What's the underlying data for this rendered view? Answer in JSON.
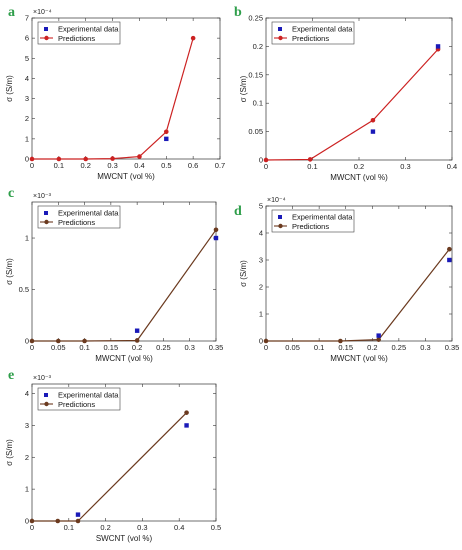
{
  "colors": {
    "experimental": "#1a1ab8",
    "prediction_red": "#cc2222",
    "prediction_brown": "#6b3a1f",
    "panel_letter": "#2e9e4a"
  },
  "chart_data": [
    {
      "panel": "a",
      "type": "scatter+line",
      "xlabel": "MWCNT (vol %)",
      "ylabel": "σ (S/m)",
      "ymultiplier": "×10⁻⁴",
      "xlim": [
        0,
        0.7
      ],
      "ylim": [
        0,
        7
      ],
      "xticks": [
        "0",
        "0.1",
        "0.2",
        "0.3",
        "0.4",
        "0.5",
        "0.6",
        "0.7"
      ],
      "yticks": [
        "0",
        "1",
        "2",
        "3",
        "4",
        "5",
        "6",
        "7"
      ],
      "legend": [
        "Experimental data",
        "Predictions"
      ],
      "line_color": "prediction_red",
      "series": [
        {
          "name": "Experimental data",
          "x": [
            0.5
          ],
          "y": [
            1.0
          ]
        },
        {
          "name": "Predictions",
          "x": [
            0,
            0.1,
            0.2,
            0.3,
            0.4,
            0.5,
            0.6
          ],
          "y": [
            0,
            0,
            0,
            0.02,
            0.12,
            1.35,
            6.0
          ]
        }
      ]
    },
    {
      "panel": "b",
      "type": "scatter+line",
      "xlabel": "MWCNT (vol %)",
      "ylabel": "σ (S/m)",
      "ymultiplier": "",
      "xlim": [
        0,
        0.4
      ],
      "ylim": [
        0,
        0.25
      ],
      "xticks": [
        "0",
        "0.1",
        "0.2",
        "0.3",
        "0.4"
      ],
      "yticks": [
        "0",
        "0.05",
        "0.1",
        "0.15",
        "0.2",
        "0.25"
      ],
      "legend": [
        "Experimental data",
        "Predictions"
      ],
      "line_color": "prediction_red",
      "series": [
        {
          "name": "Experimental data",
          "x": [
            0.23,
            0.37
          ],
          "y": [
            0.05,
            0.2
          ]
        },
        {
          "name": "Predictions",
          "x": [
            0,
            0.095,
            0.23,
            0.37
          ],
          "y": [
            0,
            0.001,
            0.07,
            0.195
          ]
        }
      ]
    },
    {
      "panel": "c",
      "type": "scatter+line",
      "xlabel": "MWCNT (vol %)",
      "ylabel": "σ (S/m)",
      "ymultiplier": "×10⁻³",
      "xlim": [
        0,
        0.35
      ],
      "ylim": [
        0,
        1.35
      ],
      "xticks": [
        "0",
        "0.05",
        "0.1",
        "0.15",
        "0.2",
        "0.25",
        "0.3",
        "0.35"
      ],
      "yticks": [
        "0",
        "0.5",
        "1"
      ],
      "legend": [
        "Experimental data",
        "Predictions"
      ],
      "line_color": "prediction_brown",
      "series": [
        {
          "name": "Experimental data",
          "x": [
            0.2,
            0.35
          ],
          "y": [
            0.1,
            1.0
          ]
        },
        {
          "name": "Predictions",
          "x": [
            0,
            0.05,
            0.1,
            0.2,
            0.35
          ],
          "y": [
            0,
            0,
            0,
            0.005,
            1.08
          ]
        }
      ]
    },
    {
      "panel": "d",
      "type": "scatter+line",
      "xlabel": "MWCNT (vol %)",
      "ylabel": "σ (S/m)",
      "ymultiplier": "×10⁻⁴",
      "xlim": [
        0,
        0.35
      ],
      "ylim": [
        0,
        5
      ],
      "xticks": [
        "0",
        "0.05",
        "0.1",
        "0.15",
        "0.2",
        "0.25",
        "0.3",
        "0.35"
      ],
      "yticks": [
        "0",
        "1",
        "2",
        "3",
        "4",
        "5"
      ],
      "legend": [
        "Experimental data",
        "Predictions"
      ],
      "line_color": "prediction_brown",
      "series": [
        {
          "name": "Experimental data",
          "x": [
            0.212,
            0.345
          ],
          "y": [
            0.2,
            3.0
          ]
        },
        {
          "name": "Predictions",
          "x": [
            0,
            0.14,
            0.212,
            0.345
          ],
          "y": [
            0,
            0,
            0.05,
            3.4
          ]
        }
      ]
    },
    {
      "panel": "e",
      "type": "scatter+line",
      "xlabel": "SWCNT (vol %)",
      "ylabel": "σ (S/m)",
      "ymultiplier": "×10⁻³",
      "xlim": [
        0,
        0.5
      ],
      "ylim": [
        0,
        4.3
      ],
      "xticks": [
        "0",
        "0.1",
        "0.2",
        "0.3",
        "0.4",
        "0.5"
      ],
      "yticks": [
        "0",
        "1",
        "2",
        "3",
        "4"
      ],
      "legend": [
        "Experimental data",
        "Predictions"
      ],
      "line_color": "prediction_brown",
      "series": [
        {
          "name": "Experimental data",
          "x": [
            0.125,
            0.42
          ],
          "y": [
            0.2,
            3.0
          ]
        },
        {
          "name": "Predictions",
          "x": [
            0,
            0.07,
            0.125,
            0.42
          ],
          "y": [
            0,
            0,
            0,
            3.4
          ]
        }
      ]
    }
  ]
}
